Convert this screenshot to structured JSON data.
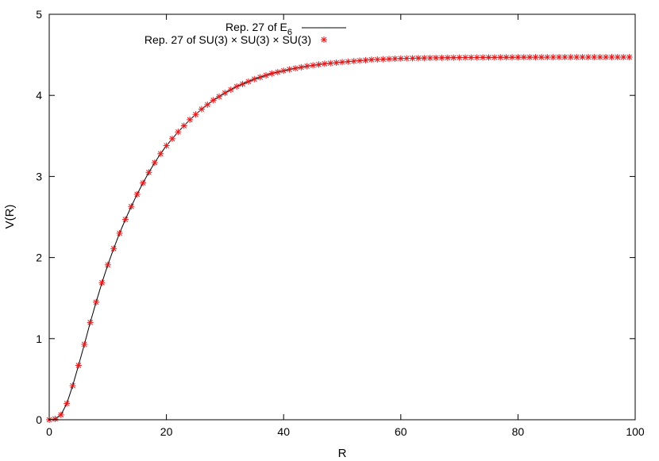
{
  "chart_data": {
    "type": "line",
    "xlabel": "R",
    "ylabel": "V(R)",
    "xlim": [
      0,
      100
    ],
    "ylim": [
      0,
      5
    ],
    "xticks": [
      "0",
      "20",
      "40",
      "60",
      "80",
      "100"
    ],
    "yticks": [
      "0",
      "1",
      "2",
      "3",
      "4",
      "5"
    ],
    "grid": false,
    "legend_position": "top",
    "series": [
      {
        "name": "Rep. 27 of E",
        "name_subscript": "6",
        "style": "line",
        "color": "#000000",
        "x": [
          0,
          1,
          2,
          3,
          4,
          5,
          6,
          7,
          8,
          9,
          10,
          11,
          12,
          13,
          14,
          15,
          16,
          17,
          18,
          19,
          20,
          22,
          24,
          26,
          28,
          30,
          32,
          35,
          38,
          41,
          44,
          47,
          50,
          55,
          60,
          65,
          70,
          80,
          90,
          99
        ],
        "y": [
          0,
          0.01,
          0.06,
          0.2,
          0.42,
          0.67,
          0.93,
          1.2,
          1.45,
          1.69,
          1.91,
          2.11,
          2.3,
          2.47,
          2.63,
          2.78,
          2.92,
          3.05,
          3.17,
          3.28,
          3.38,
          3.55,
          3.7,
          3.83,
          3.94,
          4.03,
          4.11,
          4.2,
          4.27,
          4.32,
          4.36,
          4.39,
          4.41,
          4.44,
          4.455,
          4.462,
          4.466,
          4.47,
          4.472,
          4.472
        ]
      },
      {
        "name": "Rep. 27 of SU(3) × SU(3) × SU(3)",
        "style": "star",
        "color": "#e41a1c",
        "x": [
          0,
          1,
          2,
          3,
          4,
          5,
          6,
          7,
          8,
          9,
          10,
          11,
          12,
          13,
          14,
          15,
          16,
          17,
          18,
          19,
          20,
          22,
          24,
          26,
          28,
          30,
          32,
          35,
          38,
          41,
          44,
          47,
          50,
          55,
          60,
          65,
          70,
          80,
          90,
          99
        ],
        "y": [
          0,
          0.01,
          0.06,
          0.2,
          0.42,
          0.67,
          0.93,
          1.2,
          1.45,
          1.69,
          1.91,
          2.11,
          2.3,
          2.47,
          2.63,
          2.78,
          2.92,
          3.05,
          3.17,
          3.28,
          3.38,
          3.55,
          3.7,
          3.83,
          3.94,
          4.03,
          4.11,
          4.2,
          4.27,
          4.32,
          4.36,
          4.39,
          4.41,
          4.44,
          4.455,
          4.462,
          4.466,
          4.47,
          4.472,
          4.472
        ]
      }
    ]
  }
}
